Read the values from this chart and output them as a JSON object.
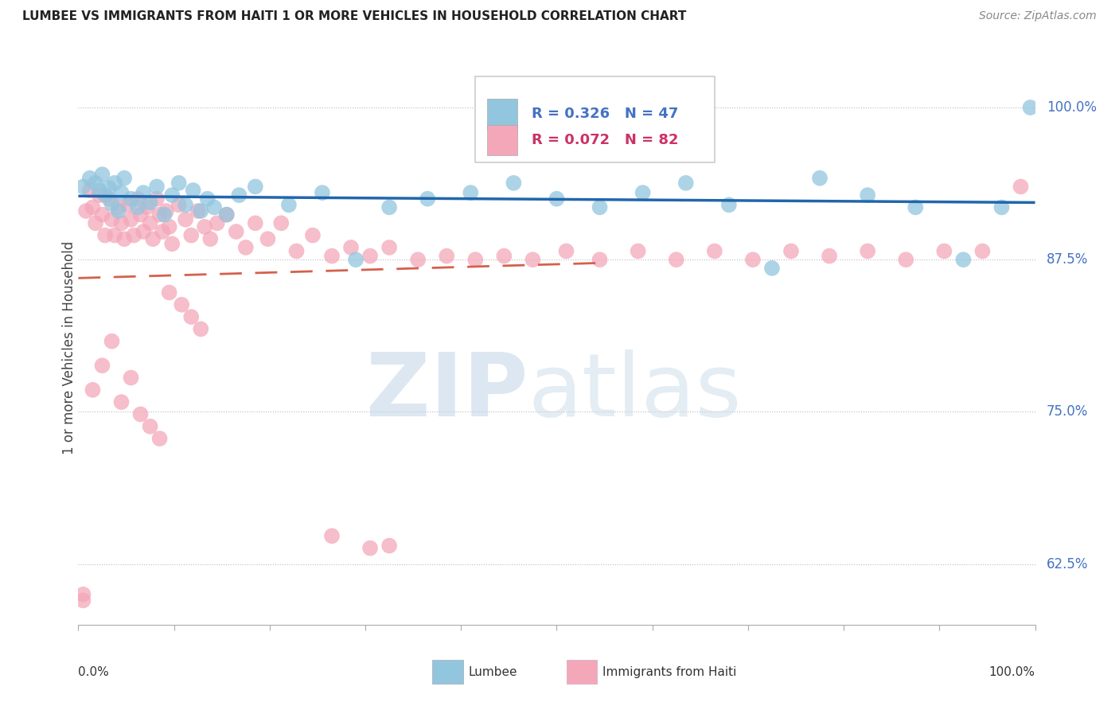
{
  "title": "LUMBEE VS IMMIGRANTS FROM HAITI 1 OR MORE VEHICLES IN HOUSEHOLD CORRELATION CHART",
  "source": "Source: ZipAtlas.com",
  "ylabel": "1 or more Vehicles in Household",
  "ytick_labels": [
    "62.5%",
    "75.0%",
    "87.5%",
    "100.0%"
  ],
  "ytick_values": [
    0.625,
    0.75,
    0.875,
    1.0
  ],
  "xlim": [
    0.0,
    1.0
  ],
  "ylim": [
    0.575,
    1.03
  ],
  "legend_r_blue": "R = 0.326",
  "legend_n_blue": "N = 47",
  "legend_r_pink": "R = 0.072",
  "legend_n_pink": "N = 82",
  "legend_label_blue": "Lumbee",
  "legend_label_pink": "Immigrants from Haiti",
  "blue_color": "#92c5de",
  "pink_color": "#f4a7b9",
  "blue_line_color": "#2166ac",
  "pink_line_color": "#d6604d",
  "watermark_zip_color": "#bfd5e8",
  "watermark_atlas_color": "#c8dde8",
  "lumbee_x": [
    0.005,
    0.012,
    0.018,
    0.022,
    0.025,
    0.028,
    0.032,
    0.035,
    0.038,
    0.042,
    0.045,
    0.048,
    0.055,
    0.062,
    0.068,
    0.075,
    0.082,
    0.09,
    0.098,
    0.105,
    0.112,
    0.12,
    0.128,
    0.135,
    0.142,
    0.155,
    0.168,
    0.185,
    0.22,
    0.255,
    0.29,
    0.325,
    0.365,
    0.41,
    0.455,
    0.5,
    0.545,
    0.59,
    0.635,
    0.68,
    0.725,
    0.775,
    0.825,
    0.875,
    0.925,
    0.965,
    0.995
  ],
  "lumbee_y": [
    0.935,
    0.942,
    0.938,
    0.932,
    0.945,
    0.928,
    0.934,
    0.921,
    0.938,
    0.915,
    0.93,
    0.942,
    0.925,
    0.918,
    0.93,
    0.922,
    0.935,
    0.912,
    0.928,
    0.938,
    0.92,
    0.932,
    0.915,
    0.925,
    0.918,
    0.912,
    0.928,
    0.935,
    0.92,
    0.93,
    0.875,
    0.918,
    0.925,
    0.93,
    0.938,
    0.925,
    0.918,
    0.93,
    0.938,
    0.92,
    0.868,
    0.942,
    0.928,
    0.918,
    0.875,
    0.918,
    1.0
  ],
  "haiti_x": [
    0.005,
    0.008,
    0.012,
    0.015,
    0.018,
    0.022,
    0.025,
    0.028,
    0.032,
    0.035,
    0.038,
    0.042,
    0.045,
    0.048,
    0.052,
    0.055,
    0.058,
    0.062,
    0.065,
    0.068,
    0.072,
    0.075,
    0.078,
    0.082,
    0.085,
    0.088,
    0.092,
    0.095,
    0.098,
    0.105,
    0.112,
    0.118,
    0.125,
    0.132,
    0.138,
    0.145,
    0.155,
    0.165,
    0.175,
    0.185,
    0.198,
    0.212,
    0.228,
    0.245,
    0.265,
    0.285,
    0.305,
    0.325,
    0.355,
    0.385,
    0.415,
    0.445,
    0.475,
    0.51,
    0.545,
    0.585,
    0.625,
    0.665,
    0.705,
    0.745,
    0.785,
    0.825,
    0.865,
    0.905,
    0.945,
    0.015,
    0.025,
    0.035,
    0.045,
    0.055,
    0.065,
    0.075,
    0.085,
    0.095,
    0.108,
    0.118,
    0.128,
    0.265,
    0.305,
    0.325,
    0.985,
    0.005
  ],
  "haiti_y": [
    0.6,
    0.915,
    0.932,
    0.918,
    0.905,
    0.928,
    0.912,
    0.895,
    0.925,
    0.908,
    0.895,
    0.918,
    0.905,
    0.892,
    0.92,
    0.908,
    0.895,
    0.925,
    0.912,
    0.898,
    0.918,
    0.905,
    0.892,
    0.925,
    0.912,
    0.898,
    0.915,
    0.902,
    0.888,
    0.92,
    0.908,
    0.895,
    0.915,
    0.902,
    0.892,
    0.905,
    0.912,
    0.898,
    0.885,
    0.905,
    0.892,
    0.905,
    0.882,
    0.895,
    0.878,
    0.885,
    0.878,
    0.885,
    0.875,
    0.878,
    0.875,
    0.878,
    0.875,
    0.882,
    0.875,
    0.882,
    0.875,
    0.882,
    0.875,
    0.882,
    0.878,
    0.882,
    0.875,
    0.882,
    0.882,
    0.768,
    0.788,
    0.808,
    0.758,
    0.778,
    0.748,
    0.738,
    0.728,
    0.848,
    0.838,
    0.828,
    0.818,
    0.648,
    0.638,
    0.64,
    0.935,
    0.595
  ]
}
